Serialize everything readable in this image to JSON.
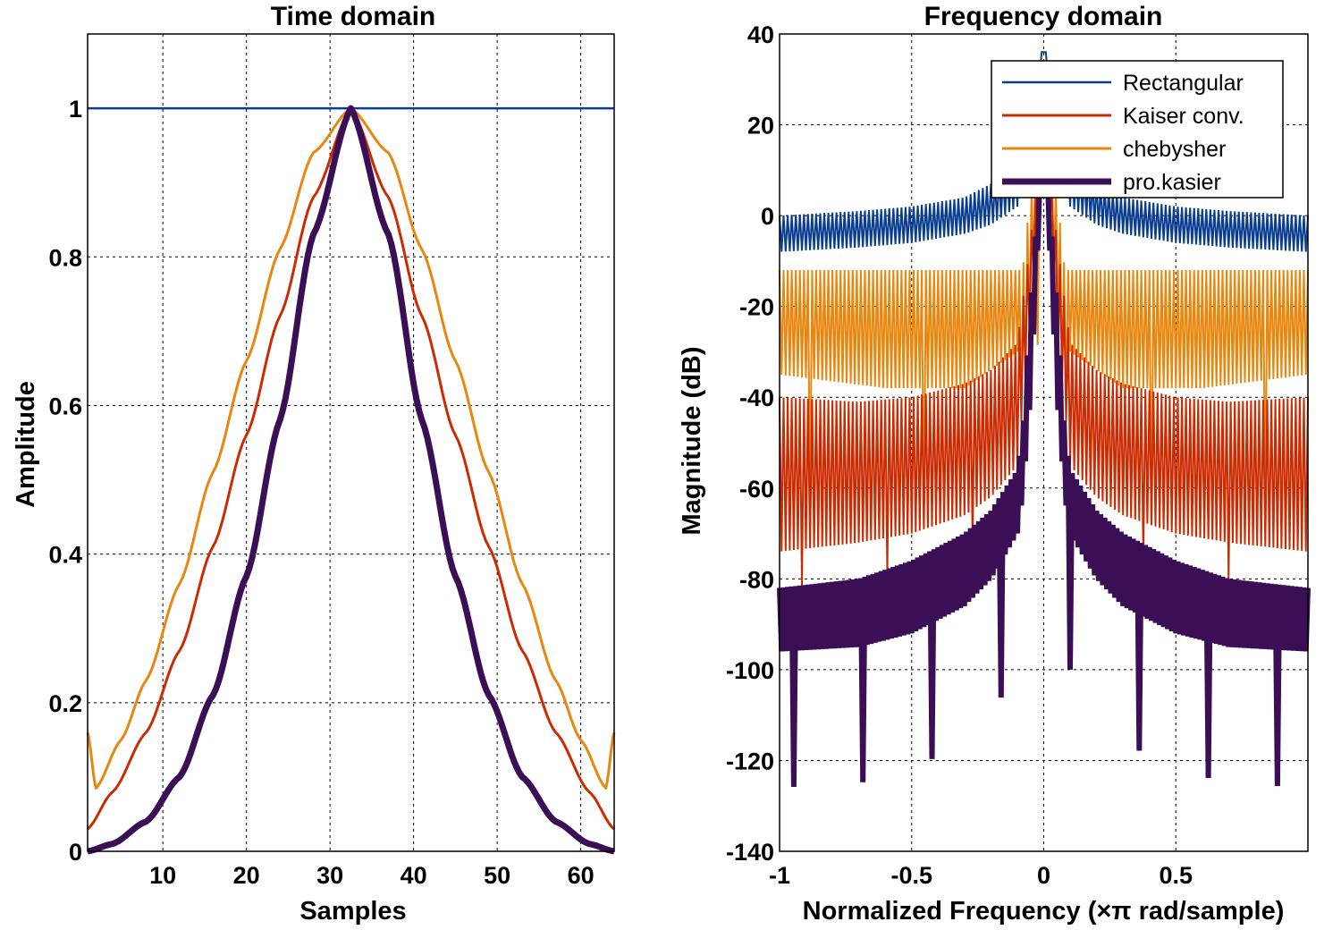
{
  "chart_data": [
    {
      "type": "line",
      "title": "Time domain",
      "xlabel": "Samples",
      "ylabel": "Amplitude",
      "xlim": [
        1,
        64
      ],
      "ylim": [
        0,
        1.1
      ],
      "xticks": [
        10,
        20,
        30,
        40,
        50,
        60
      ],
      "yticks": [
        0,
        0.2,
        0.4,
        0.6,
        0.8,
        1
      ],
      "ytick_labels": [
        "0",
        "0.2",
        "0.4",
        "0.6",
        "0.8",
        "1"
      ],
      "grid": true,
      "series": [
        {
          "name": "Rectangular",
          "color": "#0b3e91",
          "x": [
            1,
            64
          ],
          "y": [
            1,
            1
          ]
        },
        {
          "name": "Kaiser conv.",
          "color": "#cc2a00",
          "x": [
            1,
            4,
            8,
            12,
            16,
            20,
            24,
            28,
            32.5,
            37,
            41,
            45,
            49,
            53,
            57,
            61,
            64
          ],
          "y": [
            0.03,
            0.08,
            0.16,
            0.27,
            0.41,
            0.56,
            0.72,
            0.88,
            1.0,
            0.88,
            0.72,
            0.56,
            0.41,
            0.27,
            0.16,
            0.08,
            0.03
          ]
        },
        {
          "name": "chebysher",
          "color": "#e8860e",
          "x": [
            1,
            2,
            5,
            8,
            12,
            16,
            20,
            24,
            28,
            32.5,
            37,
            41,
            45,
            49,
            53,
            57,
            60,
            63,
            64
          ],
          "y": [
            0.16,
            0.085,
            0.15,
            0.23,
            0.36,
            0.51,
            0.66,
            0.81,
            0.94,
            1.0,
            0.94,
            0.81,
            0.66,
            0.51,
            0.36,
            0.23,
            0.15,
            0.085,
            0.16
          ]
        },
        {
          "name": "pro.kasier",
          "color": "#3b0f55",
          "x": [
            1,
            4,
            8,
            12,
            16,
            20,
            24,
            28,
            32.5,
            37,
            41,
            45,
            49,
            53,
            57,
            61,
            64
          ],
          "y": [
            0.0,
            0.01,
            0.04,
            0.1,
            0.21,
            0.37,
            0.58,
            0.83,
            1.0,
            0.83,
            0.58,
            0.37,
            0.21,
            0.1,
            0.04,
            0.01,
            0.0
          ]
        }
      ]
    },
    {
      "type": "line",
      "title": "Frequency domain",
      "xlabel": "Normalized Frequency  (×π rad/sample)",
      "ylabel": "Magnitude (dB)",
      "xlim": [
        -1,
        1
      ],
      "ylim": [
        -140,
        40
      ],
      "xticks": [
        -1,
        -0.5,
        0,
        0.5
      ],
      "xtick_labels": [
        "-1",
        "-0.5",
        "0",
        "0.5"
      ],
      "yticks": [
        -140,
        -120,
        -100,
        -80,
        -60,
        -40,
        -20,
        0,
        20,
        40
      ],
      "grid": true,
      "legend": {
        "position": "top-right"
      },
      "series": [
        {
          "name": "Rectangular",
          "color": "#0b3e91",
          "peak_db": 36,
          "envelope": {
            "x": [
              0.0,
              0.05,
              0.1,
              0.2,
              0.3,
              0.5,
              0.7,
              1.0
            ],
            "hi": [
              36,
              20,
              12,
              7,
              4,
              2,
              1,
              0
            ],
            "lo": [
              36,
              10,
              2,
              -2,
              -4,
              -6,
              -7,
              -8
            ]
          }
        },
        {
          "name": "Kaiser conv.",
          "color": "#cc2a00",
          "peak_db": 20,
          "envelope": {
            "x": [
              0.0,
              0.06,
              0.1,
              0.2,
              0.3,
              0.5,
              0.7,
              1.0
            ],
            "hi": [
              20,
              -10,
              -28,
              -34,
              -37,
              -40,
              -41,
              -40
            ],
            "lo": [
              20,
              -30,
              -55,
              -62,
              -66,
              -70,
              -72,
              -74
            ]
          }
        },
        {
          "name": "chebysher",
          "color": "#e8860e",
          "peak_db": 20,
          "envelope": {
            "x": [
              0.0,
              0.05,
              0.08,
              0.1,
              0.3,
              0.6,
              1.0
            ],
            "hi": [
              20,
              5,
              -12,
              -12,
              -12,
              -12,
              -12
            ],
            "lo": [
              20,
              -20,
              -45,
              -30,
              -38,
              -38,
              -35
            ]
          }
        },
        {
          "name": "pro.kasier",
          "color": "#3b0f55",
          "peak_db": 20,
          "envelope": {
            "x": [
              0.0,
              0.05,
              0.08,
              0.1,
              0.2,
              0.3,
              0.5,
              0.7,
              1.0
            ],
            "hi": [
              20,
              -20,
              -48,
              -56,
              -65,
              -70,
              -76,
              -80,
              -82
            ],
            "lo": [
              20,
              -40,
              -62,
              -70,
              -80,
              -86,
              -92,
              -95,
              -96
            ]
          }
        }
      ]
    }
  ]
}
